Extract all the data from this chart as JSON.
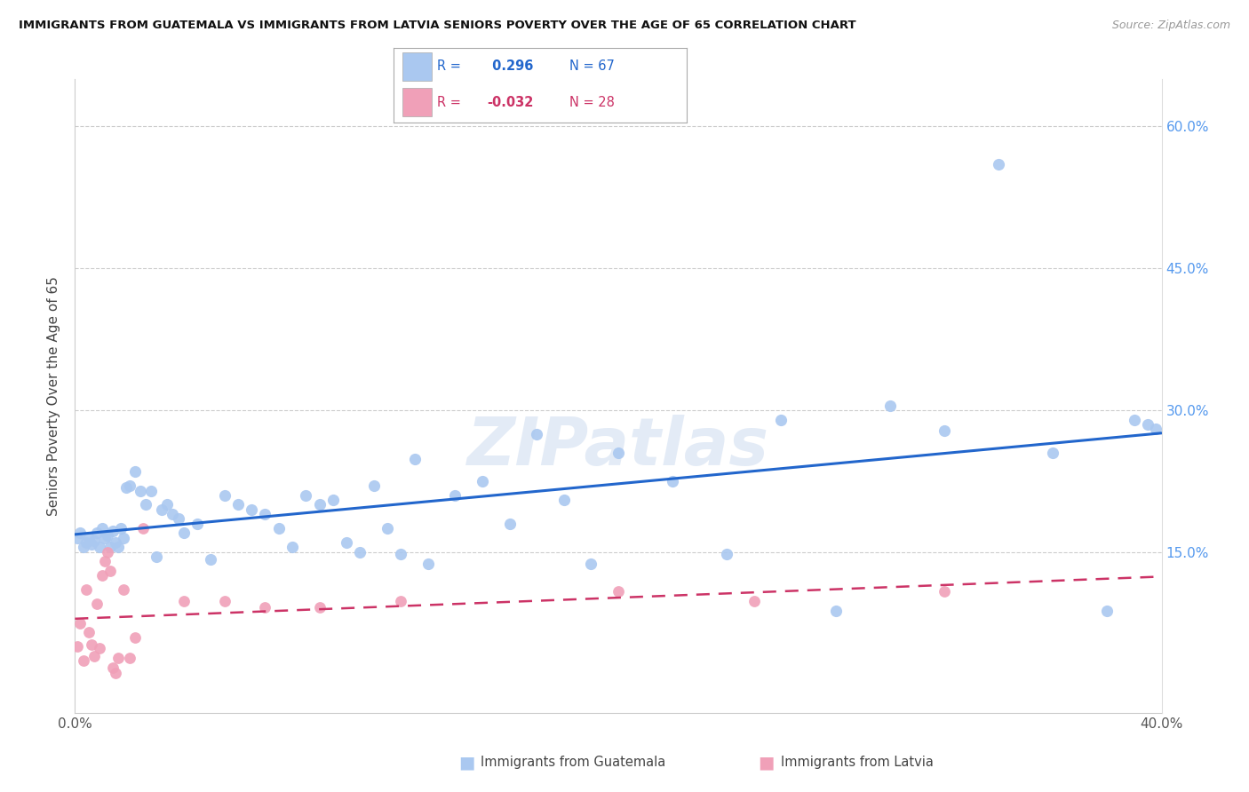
{
  "title": "IMMIGRANTS FROM GUATEMALA VS IMMIGRANTS FROM LATVIA SENIORS POVERTY OVER THE AGE OF 65 CORRELATION CHART",
  "source": "Source: ZipAtlas.com",
  "ylabel": "Seniors Poverty Over the Age of 65",
  "xlim": [
    0.0,
    0.4
  ],
  "ylim": [
    -0.02,
    0.65
  ],
  "guatemala_color": "#aac8f0",
  "guatemala_line_color": "#2266cc",
  "latvia_color": "#f0a0b8",
  "latvia_line_color": "#cc3366",
  "r_guatemala": 0.296,
  "n_guatemala": 67,
  "r_latvia": -0.032,
  "n_latvia": 28,
  "guatemala_x": [
    0.001,
    0.002,
    0.003,
    0.004,
    0.005,
    0.006,
    0.007,
    0.008,
    0.009,
    0.01,
    0.011,
    0.012,
    0.013,
    0.014,
    0.015,
    0.016,
    0.017,
    0.018,
    0.019,
    0.02,
    0.022,
    0.024,
    0.026,
    0.028,
    0.03,
    0.032,
    0.034,
    0.036,
    0.038,
    0.04,
    0.045,
    0.05,
    0.055,
    0.06,
    0.065,
    0.07,
    0.075,
    0.08,
    0.085,
    0.09,
    0.095,
    0.1,
    0.105,
    0.11,
    0.115,
    0.12,
    0.125,
    0.13,
    0.14,
    0.15,
    0.16,
    0.17,
    0.18,
    0.19,
    0.2,
    0.22,
    0.24,
    0.26,
    0.28,
    0.3,
    0.32,
    0.34,
    0.36,
    0.38,
    0.39,
    0.395,
    0.398
  ],
  "guatemala_y": [
    0.165,
    0.17,
    0.155,
    0.16,
    0.165,
    0.158,
    0.162,
    0.17,
    0.155,
    0.175,
    0.165,
    0.168,
    0.155,
    0.172,
    0.16,
    0.155,
    0.175,
    0.165,
    0.218,
    0.22,
    0.235,
    0.215,
    0.2,
    0.215,
    0.145,
    0.195,
    0.2,
    0.19,
    0.185,
    0.17,
    0.18,
    0.142,
    0.21,
    0.2,
    0.195,
    0.19,
    0.175,
    0.155,
    0.21,
    0.2,
    0.205,
    0.16,
    0.15,
    0.22,
    0.175,
    0.148,
    0.248,
    0.138,
    0.21,
    0.225,
    0.18,
    0.275,
    0.205,
    0.138,
    0.255,
    0.225,
    0.148,
    0.29,
    0.088,
    0.305,
    0.278,
    0.56,
    0.255,
    0.088,
    0.29,
    0.285,
    0.28
  ],
  "latvia_x": [
    0.001,
    0.002,
    0.003,
    0.004,
    0.005,
    0.006,
    0.007,
    0.008,
    0.009,
    0.01,
    0.011,
    0.012,
    0.013,
    0.014,
    0.015,
    0.016,
    0.018,
    0.02,
    0.022,
    0.025,
    0.04,
    0.055,
    0.07,
    0.09,
    0.12,
    0.2,
    0.25,
    0.32
  ],
  "latvia_y": [
    0.05,
    0.075,
    0.035,
    0.11,
    0.065,
    0.052,
    0.04,
    0.095,
    0.048,
    0.125,
    0.14,
    0.15,
    0.13,
    0.028,
    0.022,
    0.038,
    0.11,
    0.038,
    0.06,
    0.175,
    0.098,
    0.098,
    0.092,
    0.092,
    0.098,
    0.108,
    0.098,
    0.108
  ],
  "ytick_positions": [
    0.0,
    0.15,
    0.3,
    0.45,
    0.6
  ],
  "ytick_labels_right": [
    "",
    "15.0%",
    "30.0%",
    "45.0%",
    "60.0%"
  ],
  "xticks": [
    0.0,
    0.05,
    0.1,
    0.15,
    0.2,
    0.25,
    0.3,
    0.35,
    0.4
  ],
  "xticklabels_show": {
    "0.0": "0.0%",
    "0.4": "40.0%"
  }
}
